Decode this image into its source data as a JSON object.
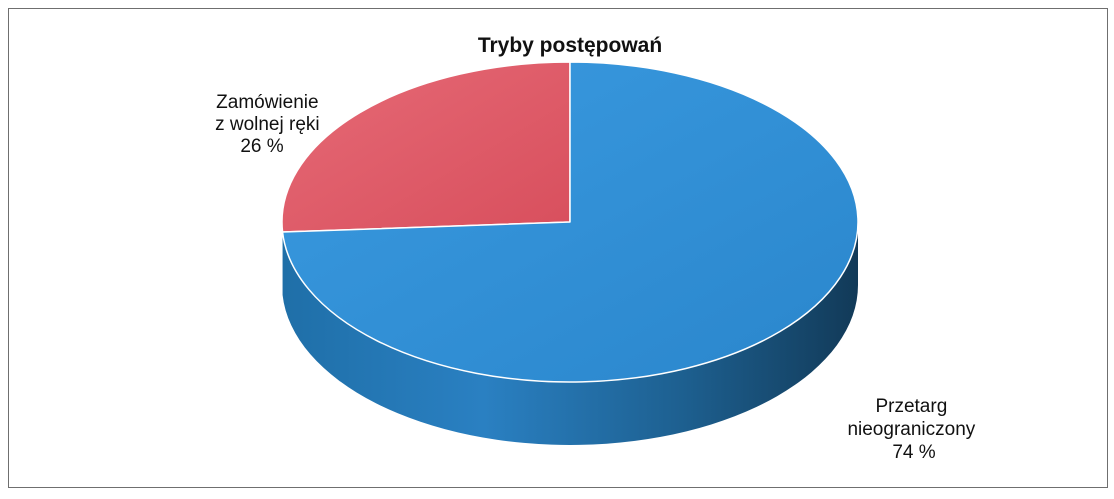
{
  "chart_data": {
    "type": "pie",
    "title": "Tryby postępowań",
    "style": "3d",
    "slices": [
      {
        "label_lines": [
          "Zamówienie",
          "z wolnej ręki",
          "26  %"
        ],
        "value": 26,
        "color": "#e05a68"
      },
      {
        "label_lines": [
          "Przetarg",
          "nieograniczony",
          "74 %"
        ],
        "value": 74,
        "color": "#2f8fd3"
      }
    ]
  }
}
